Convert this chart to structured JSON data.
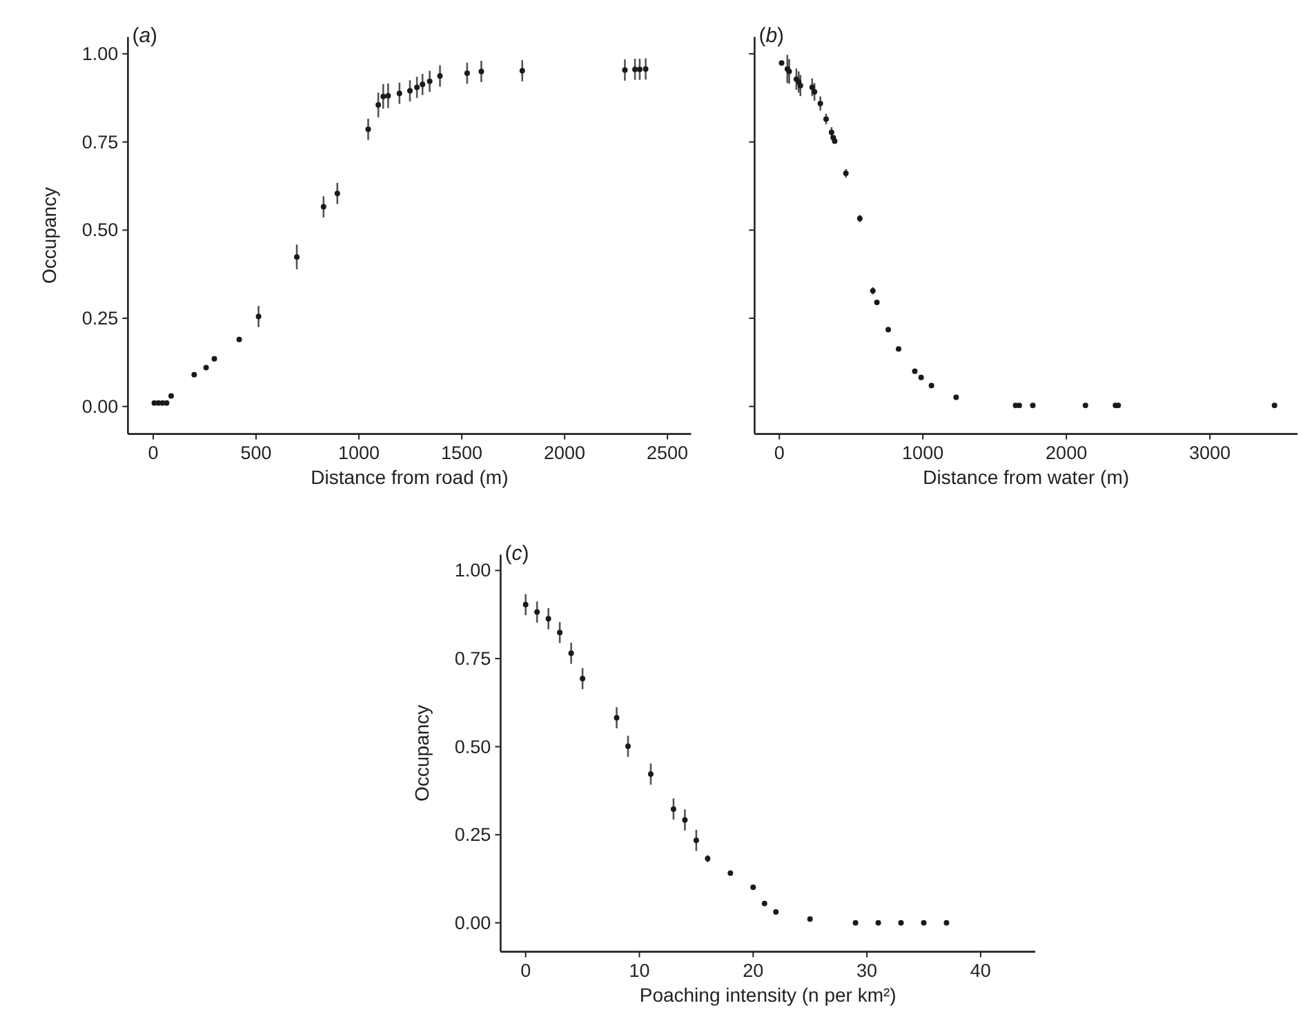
{
  "chart_data": [
    {
      "type": "scatter",
      "title": "(a)",
      "xlabel": "Distance from road (m)",
      "ylabel": "Occupancy",
      "marker": "circle",
      "grid": false,
      "xlim": [
        -123,
        2615
      ],
      "xticks": [
        0,
        500,
        1000,
        1500,
        2000,
        2500
      ],
      "ylim": [
        -0.078,
        1.048
      ],
      "yticks": [
        {
          "value": 0,
          "label": "0.00"
        },
        {
          "value": 0.25,
          "label": "0.25"
        },
        {
          "value": 0.5,
          "label": "0.50"
        },
        {
          "value": 0.75,
          "label": "0.75"
        },
        {
          "value": 1,
          "label": "1.00"
        }
      ],
      "series": [
        {
          "color": "#1a1a1a",
          "x": [
            5,
            25,
            45,
            65,
            87,
            199,
            257,
            297,
            418,
            512,
            698,
            828,
            895,
            1045,
            1094,
            1118,
            1142,
            1197,
            1248,
            1282,
            1309,
            1344,
            1394,
            1526,
            1595,
            1794,
            2293,
            2342,
            2365,
            2394
          ],
          "values": [
            0.01,
            0.01,
            0.01,
            0.01,
            0.03,
            0.09,
            0.11,
            0.135,
            0.19,
            0.255,
            0.424,
            0.566,
            0.604,
            0.786,
            0.855,
            0.879,
            0.881,
            0.888,
            0.895,
            0.905,
            0.913,
            0.922,
            0.937,
            0.945,
            0.95,
            0.952,
            0.954,
            0.956,
            0.956,
            0.957
          ],
          "errors": [
            null,
            null,
            null,
            null,
            null,
            null,
            null,
            null,
            null,
            0.03,
            0.035,
            0.03,
            0.03,
            0.03,
            0.035,
            0.035,
            0.035,
            0.03,
            0.03,
            0.03,
            0.03,
            0.03,
            0.03,
            0.03,
            0.03,
            0.03,
            0.03,
            0.03,
            0.03,
            0.03
          ]
        }
      ]
    },
    {
      "type": "scatter",
      "title": "(b)",
      "xlabel": "Distance from water (m)",
      "marker": "circle",
      "grid": false,
      "tick_labels": "x",
      "xlim": [
        -172,
        3610
      ],
      "xticks": [
        0,
        1000,
        2000,
        3000
      ],
      "ylim": [
        -0.078,
        1.048
      ],
      "yticks": [
        0,
        0.25,
        0.5,
        0.75,
        1
      ],
      "series": [
        {
          "color": "#1a1a1a",
          "x": [
            16,
            56,
            69,
            119,
            135,
            147,
            229,
            245,
            286,
            326,
            364,
            376,
            386,
            464,
            561,
            652,
            680,
            759,
            831,
            944,
            988,
            1060,
            1232,
            1646,
            1672,
            1766,
            2133,
            2342,
            2361,
            3450
          ],
          "values": [
            0.974,
            0.957,
            0.95,
            0.928,
            0.92,
            0.91,
            0.905,
            0.892,
            0.859,
            0.815,
            0.777,
            0.762,
            0.752,
            0.661,
            0.533,
            0.328,
            0.295,
            0.218,
            0.163,
            0.1,
            0.082,
            0.059,
            0.026,
            0.003,
            0.003,
            0.003,
            0.003,
            0.003,
            0.003,
            0.003
          ],
          "errors": [
            null,
            0.04,
            0.035,
            0.03,
            0.03,
            0.03,
            0.025,
            0.025,
            0.02,
            0.015,
            0.015,
            null,
            null,
            0.012,
            0.01,
            0.01,
            null,
            null,
            null,
            null,
            null,
            null,
            null,
            null,
            null,
            null,
            null,
            null,
            null,
            null
          ]
        }
      ]
    },
    {
      "type": "scatter",
      "title": "(c)",
      "xlabel": "Poaching intensity (n per km²)",
      "ylabel": "Occupancy",
      "marker": "circle",
      "grid": false,
      "xlim": [
        -2.2,
        44.8
      ],
      "xticks": [
        0,
        10,
        20,
        30,
        40
      ],
      "ylim": [
        -0.082,
        1.045
      ],
      "yticks": [
        {
          "value": 0,
          "label": "0.00"
        },
        {
          "value": 0.25,
          "label": "0.25"
        },
        {
          "value": 0.5,
          "label": "0.50"
        },
        {
          "value": 0.75,
          "label": "0.75"
        },
        {
          "value": 1,
          "label": "1.00"
        }
      ],
      "series": [
        {
          "color": "#1a1a1a",
          "x": [
            0,
            1,
            2,
            3,
            4,
            5,
            8,
            9,
            11,
            13,
            14,
            15,
            16,
            18,
            20,
            21,
            22,
            25,
            29,
            31,
            33,
            35,
            37
          ],
          "values": [
            0.903,
            0.882,
            0.863,
            0.824,
            0.765,
            0.693,
            0.582,
            0.501,
            0.422,
            0.323,
            0.292,
            0.234,
            0.182,
            0.141,
            0.101,
            0.055,
            0.031,
            0.011,
            0,
            0,
            0,
            0,
            0
          ],
          "errors": [
            0.03,
            0.03,
            0.03,
            0.03,
            0.03,
            0.03,
            0.03,
            0.03,
            0.03,
            0.03,
            0.03,
            0.03,
            0.01,
            null,
            null,
            null,
            null,
            null,
            null,
            null,
            null,
            null,
            null
          ]
        }
      ]
    }
  ]
}
